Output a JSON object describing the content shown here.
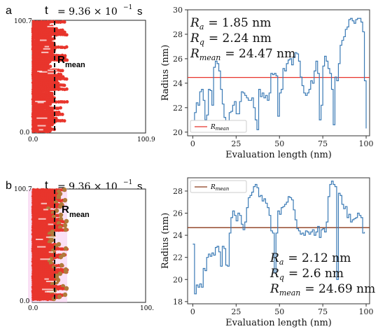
{
  "panels": [
    {
      "letter": "a",
      "time_label": "t",
      "time_value": "= 9.36 × 10",
      "time_exp": "−1",
      "time_unit": "s",
      "sim_y_top": "100.7",
      "sim_y_bottom": "0.0",
      "sim_x_left": "0.0",
      "sim_x_right": "100.9",
      "rmean_label": "R",
      "rmean_sub": "mean",
      "particle_color": "#e8352c"
    },
    {
      "letter": "b",
      "time_label": "t",
      "time_value": "= 9.36 × 10",
      "time_exp": "−1",
      "time_unit": "s",
      "sim_y_top": "100.7",
      "sim_y_bottom": "0.0",
      "sim_x_left": "0.0",
      "sim_x_right": "100.",
      "rmean_label": "R",
      "rmean_sub": "mean",
      "particle_color": "#e8352c"
    }
  ],
  "chart_data": [
    {
      "type": "line",
      "xlabel": "Evaluation length (nm)",
      "ylabel": "Radius (nm)",
      "xlim": [
        -3,
        102
      ],
      "ylim": [
        19.7,
        30
      ],
      "xticks": [
        0,
        25,
        50,
        75,
        100
      ],
      "yticks": [
        20,
        22,
        24,
        26,
        28,
        30
      ],
      "line_color": "#3a7ab5",
      "mean_color": "#e8352c",
      "mean_value": 24.47,
      "legend": {
        "label": "R",
        "sub": "mean",
        "position": "bottom-left"
      },
      "stats": [
        {
          "sym": "R",
          "sub": "a",
          "text": "= 1.85 nm"
        },
        {
          "sym": "R",
          "sub": "q",
          "text": "= 2.24 nm"
        },
        {
          "sym": "R",
          "sub": "mean",
          "text": "= 24.47 nm"
        }
      ],
      "x": [
        0,
        1,
        2,
        3,
        4,
        5,
        6,
        7,
        8,
        9,
        10,
        11,
        12,
        13,
        14,
        15,
        16,
        17,
        18,
        19,
        20,
        21,
        22,
        23,
        24,
        25,
        26,
        27,
        28,
        29,
        30,
        31,
        32,
        33,
        34,
        35,
        36,
        37,
        38,
        39,
        40,
        41,
        42,
        43,
        44,
        45,
        46,
        47,
        48,
        49,
        50,
        51,
        52,
        53,
        54,
        55,
        56,
        57,
        58,
        59,
        60,
        61,
        62,
        63,
        64,
        65,
        66,
        67,
        68,
        69,
        70,
        71,
        72,
        73,
        74,
        75,
        76,
        77,
        78,
        79,
        80,
        81,
        82,
        83,
        84,
        85,
        86,
        87,
        88,
        89,
        90,
        91,
        92,
        93,
        94,
        95,
        96,
        97,
        98,
        99,
        100
      ],
      "y": [
        20.8,
        21.6,
        22.4,
        22.2,
        23.3,
        23.5,
        22.6,
        21.0,
        21.4,
        23.5,
        23.4,
        22.2,
        25.3,
        25.8,
        25.6,
        25.0,
        23.5,
        22.3,
        21.2,
        20.7,
        20.9,
        21.6,
        21.7,
        22.2,
        22.5,
        21.5,
        21.5,
        22.5,
        23.3,
        23.2,
        23.0,
        22.8,
        22.6,
        22.6,
        22.8,
        22.0,
        21.0,
        20.2,
        23.5,
        22.9,
        23.2,
        22.8,
        23.0,
        22.6,
        23.2,
        24.8,
        24.7,
        24.8,
        24.6,
        21.3,
        23.2,
        23.5,
        25.2,
        25.0,
        25.6,
        25.9,
        26.0,
        25.5,
        26.1,
        26.5,
        26.4,
        25.8,
        24.5,
        23.8,
        23.2,
        23.0,
        23.2,
        23.5,
        24.2,
        24.0,
        25.0,
        25.8,
        24.8,
        21.0,
        22.2,
        25.4,
        26.2,
        25.8,
        25.2,
        24.8,
        23.5,
        20.6,
        24.5,
        24.2,
        25.6,
        27.1,
        27.5,
        27.8,
        28.4,
        28.6,
        29.2,
        29.3,
        29.1,
        28.9,
        29.2,
        29.3,
        29.3,
        29.0,
        28.2,
        24.2,
        20.3
      ]
    },
    {
      "type": "line",
      "xlabel": "Evaluation length (nm)",
      "ylabel": "Radius (nm)",
      "xlim": [
        -3,
        102
      ],
      "ylim": [
        17.8,
        29.2
      ],
      "xticks": [
        0,
        25,
        50,
        75,
        100
      ],
      "yticks": [
        18,
        20,
        22,
        24,
        26,
        28
      ],
      "line_color": "#3a7ab5",
      "mean_color": "#8b3a1a",
      "mean_value": 24.69,
      "legend": {
        "label": "R",
        "sub": "mean",
        "position": "top-left"
      },
      "stats": [
        {
          "sym": "R",
          "sub": "a",
          "text": "= 2.12 nm"
        },
        {
          "sym": "R",
          "sub": "q",
          "text": "= 2.6 nm"
        },
        {
          "sym": "R",
          "sub": "mean",
          "text": "= 24.69 nm"
        }
      ],
      "x": [
        0,
        1,
        2,
        3,
        4,
        5,
        6,
        7,
        8,
        9,
        10,
        11,
        12,
        13,
        14,
        15,
        16,
        17,
        18,
        19,
        20,
        21,
        22,
        23,
        24,
        25,
        26,
        27,
        28,
        29,
        30,
        31,
        32,
        33,
        34,
        35,
        36,
        37,
        38,
        39,
        40,
        41,
        42,
        43,
        44,
        45,
        46,
        47,
        48,
        49,
        50,
        51,
        52,
        53,
        54,
        55,
        56,
        57,
        58,
        59,
        60,
        61,
        62,
        63,
        64,
        65,
        66,
        67,
        68,
        69,
        70,
        71,
        72,
        73,
        74,
        75,
        76,
        77,
        78,
        79,
        80,
        81,
        82,
        83,
        84,
        85,
        86,
        87,
        88,
        89,
        90,
        91,
        92,
        93,
        94,
        95,
        96,
        97,
        98,
        99
      ],
      "y": [
        23.2,
        18.7,
        19.5,
        19.3,
        19.6,
        19.3,
        21.0,
        20.8,
        22.0,
        22.3,
        22.1,
        22.4,
        22.2,
        22.9,
        23.0,
        22.5,
        21.2,
        23.0,
        22.8,
        21.3,
        21.2,
        24.2,
        25.6,
        26.2,
        25.8,
        25.3,
        26.0,
        25.8,
        25.0,
        24.5,
        25.2,
        26.5,
        27.4,
        27.6,
        27.9,
        28.4,
        28.6,
        28.3,
        27.5,
        27.6,
        27.1,
        27.3,
        26.9,
        26.5,
        25.8,
        24.4,
        24.2,
        20.6,
        24.2,
        26.2,
        25.9,
        26.5,
        26.6,
        26.8,
        27.0,
        27.5,
        27.4,
        27.2,
        26.3,
        25.4,
        24.6,
        24.4,
        24.1,
        24.2,
        24.0,
        24.4,
        24.3,
        24.1,
        24.3,
        24.5,
        24.0,
        24.3,
        24.8,
        23.8,
        24.5,
        24.6,
        24.3,
        25.2,
        27.5,
        28.6,
        28.9,
        28.6,
        28.4,
        20.0,
        27.8,
        27.6,
        26.8,
        26.4,
        26.6,
        25.6,
        25.9,
        25.2,
        25.4,
        25.5,
        25.6,
        26.0,
        25.8,
        25.6,
        24.2,
        24.3
      ]
    }
  ]
}
